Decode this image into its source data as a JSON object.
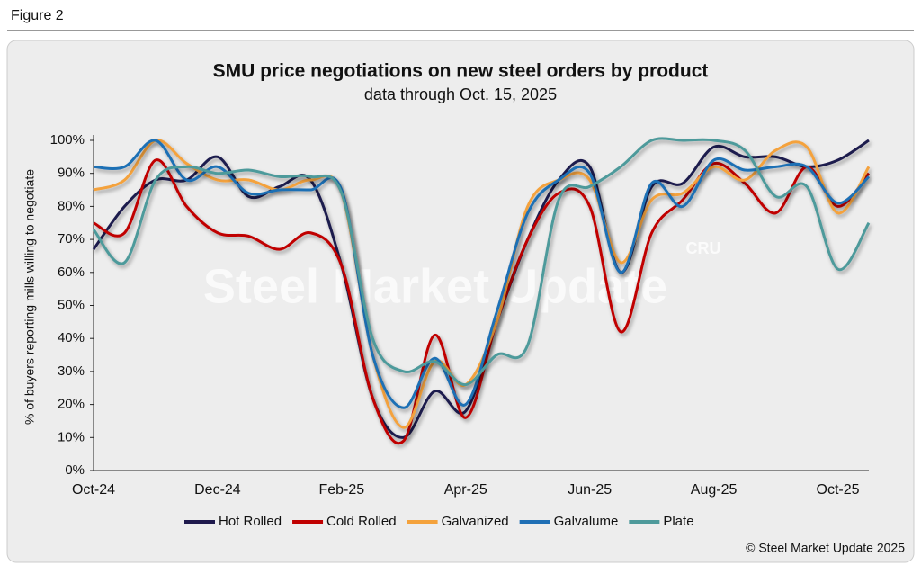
{
  "figure_label": "Figure 2",
  "chart_data": {
    "type": "line",
    "title": "SMU price negotiations on new steel orders by product",
    "subtitle": "data through Oct. 15, 2025",
    "y_label": "% of buyers reporting mills willing to negotiate",
    "watermark": "Steel Market Update",
    "logo": "CRU",
    "source": "© Steel Market Update 2025",
    "categories": [
      "Oct-24",
      null,
      null,
      null,
      "Dec-24",
      null,
      null,
      null,
      "Feb-25",
      null,
      null,
      null,
      "Apr-25",
      null,
      null,
      null,
      "Jun-25",
      null,
      null,
      null,
      "Aug-25",
      null,
      null,
      null,
      "Oct-25",
      null
    ],
    "ylim": [
      0,
      100
    ],
    "yticks": [
      {
        "value": 0,
        "label": "0%"
      },
      {
        "value": 10,
        "label": "10%"
      },
      {
        "value": 20,
        "label": "20%"
      },
      {
        "value": 30,
        "label": "30%"
      },
      {
        "value": 40,
        "label": "40%"
      },
      {
        "value": 50,
        "label": "50%"
      },
      {
        "value": 60,
        "label": "60%"
      },
      {
        "value": 70,
        "label": "70%"
      },
      {
        "value": 80,
        "label": "80%"
      },
      {
        "value": 90,
        "label": "90%"
      },
      {
        "value": 100,
        "label": "100%"
      }
    ],
    "grid": false,
    "legend": "bottom",
    "series": [
      {
        "name": "Hot Rolled",
        "color": "#1f1a4d",
        "values": [
          67,
          80,
          88,
          88,
          95,
          83,
          86,
          88,
          62,
          22,
          10,
          24,
          18,
          45,
          70,
          88,
          92,
          60,
          86,
          87,
          98,
          95,
          95,
          92,
          94,
          100
        ]
      },
      {
        "name": "Cold Rolled",
        "color": "#c00000",
        "values": [
          75,
          72,
          94,
          80,
          72,
          71,
          67,
          72,
          62,
          22,
          9,
          41,
          16,
          45,
          70,
          84,
          80,
          42,
          72,
          82,
          93,
          87,
          78,
          92,
          80,
          90
        ]
      },
      {
        "name": "Galvanized",
        "color": "#f4a23c",
        "values": [
          85,
          88,
          100,
          93,
          88,
          88,
          85,
          88,
          84,
          35,
          13,
          33,
          26,
          45,
          80,
          88,
          88,
          63,
          82,
          84,
          92,
          88,
          97,
          98,
          78,
          92
        ]
      },
      {
        "name": "Galvalume",
        "color": "#1f6fb5",
        "values": [
          92,
          92,
          100,
          88,
          92,
          84,
          85,
          85,
          85,
          35,
          19,
          34,
          20,
          48,
          78,
          88,
          90,
          60,
          87,
          80,
          94,
          91,
          92,
          92,
          81,
          89
        ]
      },
      {
        "name": "Plate",
        "color": "#4e9a9b",
        "values": [
          73,
          63,
          88,
          92,
          90,
          91,
          89,
          89,
          84,
          40,
          30,
          33,
          26,
          35,
          38,
          82,
          86,
          92,
          100,
          100,
          100,
          97,
          83,
          86,
          61,
          75
        ]
      }
    ]
  }
}
